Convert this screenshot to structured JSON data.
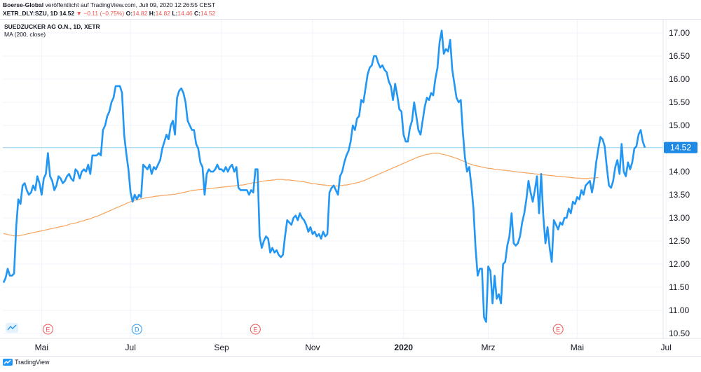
{
  "header": {
    "publisher": "Boerse-Global",
    "published_text": "veröffentlicht auf TradingView.com, Juli 09, 2020 12:26:55 CEST",
    "symbol": "XETR_DLY:SZU, 1D",
    "last": "14.52",
    "change": "−0.11 (−0.75%)",
    "o_label": "O:",
    "o_value": "14.82",
    "h_label": "H:",
    "h_value": "14.82",
    "l_label": "L:",
    "l_value": "14.46",
    "c_label": "C:",
    "c_value": "14.52"
  },
  "legend": {
    "title": "SUEDZUCKER AG O.N., 1D, XETR",
    "indicator": "MA (200, close)"
  },
  "footer": {
    "brand": "TradingView"
  },
  "colors": {
    "price": "#2196f3",
    "ma": "#f7a35c",
    "last_line": "#9fd4f5",
    "last_badge": "#1e88e5",
    "grid": "#f0f3fa",
    "axis": "#e0e3eb"
  },
  "chart_data": {
    "type": "line",
    "ylim": [
      10.4,
      17.2
    ],
    "y_ticks": [
      "10.50",
      "11.00",
      "11.50",
      "12.00",
      "12.50",
      "13.00",
      "13.50",
      "14.00",
      "14.50",
      "15.00",
      "15.50",
      "16.00",
      "16.50",
      "17.00"
    ],
    "x_ticks": [
      {
        "label": "Mai",
        "bold": false
      },
      {
        "label": "Jul",
        "bold": false
      },
      {
        "label": "Sep",
        "bold": false
      },
      {
        "label": "Nov",
        "bold": false
      },
      {
        "label": "2020",
        "bold": true
      },
      {
        "label": "Mrz",
        "bold": false
      },
      {
        "label": "Mai",
        "bold": false
      },
      {
        "label": "Jul",
        "bold": false
      }
    ],
    "x_tick_index": [
      18,
      60,
      103,
      146,
      189,
      229,
      271,
      313
    ],
    "last_price_label": "14.52",
    "events": [
      {
        "label": "E",
        "index": 21,
        "color": "#ef5350"
      },
      {
        "label": "D",
        "index": 63,
        "color": "#2196f3"
      },
      {
        "label": "E",
        "index": 119,
        "color": "#ef5350"
      },
      {
        "label": "E",
        "index": 262,
        "color": "#ef5350"
      }
    ],
    "series": [
      {
        "name": "SUEDZUCKER AG O.N., 1D, XETR",
        "values": [
          11.6,
          11.7,
          11.9,
          11.75,
          11.75,
          11.8,
          12.8,
          13.4,
          13.3,
          13.7,
          13.75,
          13.6,
          13.5,
          13.55,
          13.7,
          13.6,
          13.9,
          13.75,
          13.5,
          13.85,
          13.95,
          14.4,
          13.9,
          13.8,
          13.6,
          13.7,
          13.9,
          13.85,
          13.75,
          13.8,
          13.9,
          13.95,
          13.85,
          13.8,
          14.05,
          14.0,
          13.85,
          14.0,
          14.05,
          14.0,
          14.15,
          13.95,
          14.35,
          14.35,
          14.35,
          14.4,
          14.35,
          14.9,
          15.0,
          15.2,
          15.3,
          15.5,
          15.6,
          15.85,
          15.85,
          15.85,
          15.7,
          14.8,
          14.4,
          14.05,
          13.55,
          13.35,
          13.5,
          13.4,
          13.5,
          13.45,
          14.15,
          14.1,
          14.05,
          14.15,
          13.95,
          14.1,
          14.05,
          14.15,
          14.25,
          14.5,
          14.65,
          14.8,
          14.7,
          15.0,
          15.1,
          14.8,
          15.6,
          15.75,
          15.8,
          15.7,
          15.5,
          15.1,
          15.0,
          14.9,
          14.9,
          14.6,
          14.5,
          14.2,
          14.1,
          13.5,
          13.95,
          14.05,
          14.0,
          14.0,
          14.05,
          14.15,
          14.05,
          14.05,
          14.0,
          14.1,
          14.0,
          14.1,
          14.15,
          14.0,
          14.1,
          13.65,
          13.6,
          13.6,
          13.6,
          13.6,
          13.5,
          13.6,
          13.55,
          14.05,
          14.05,
          12.6,
          12.35,
          12.5,
          12.6,
          12.55,
          12.25,
          12.35,
          12.25,
          12.3,
          12.2,
          12.15,
          12.2,
          12.6,
          12.95,
          12.9,
          12.85,
          13.0,
          13.05,
          12.95,
          13.1,
          13.0,
          12.95,
          12.85,
          12.7,
          12.8,
          12.65,
          12.7,
          12.6,
          12.65,
          12.55,
          12.7,
          12.6,
          12.65,
          13.55,
          13.65,
          13.7,
          13.6,
          13.5,
          13.9,
          14.0,
          14.2,
          14.35,
          14.45,
          14.65,
          15.0,
          14.9,
          15.15,
          15.2,
          15.55,
          15.5,
          15.8,
          16.1,
          16.25,
          16.3,
          16.5,
          16.5,
          16.35,
          16.25,
          16.3,
          16.2,
          16.15,
          15.95,
          15.85,
          15.55,
          15.9,
          15.65,
          15.35,
          15.3,
          14.8,
          14.65,
          14.65,
          14.95,
          15.1,
          15.5,
          15.2,
          14.9,
          14.8,
          15.1,
          15.4,
          15.6,
          15.55,
          15.7,
          15.65,
          16.0,
          16.25,
          16.8,
          17.05,
          16.55,
          16.65,
          16.6,
          16.85,
          16.2,
          15.9,
          15.6,
          15.5,
          15.55,
          14.85,
          14.3,
          14.0,
          14.1,
          13.7,
          13.2,
          12.35,
          11.75,
          11.9,
          11.9,
          10.85,
          10.75,
          11.95,
          11.85,
          11.15,
          11.75,
          11.25,
          11.35,
          11.15,
          12.0,
          12.05,
          12.4,
          12.6,
          13.1,
          12.45,
          12.4,
          12.45,
          12.6,
          12.9,
          13.1,
          13.4,
          13.8,
          13.55,
          13.35,
          13.6,
          13.9,
          13.1,
          13.95,
          13.05,
          12.45,
          12.8,
          12.35,
          12.05,
          12.95,
          12.85,
          12.75,
          12.9,
          12.85,
          13.0,
          13.0,
          13.2,
          13.1,
          13.35,
          13.3,
          13.45,
          13.4,
          13.6,
          13.5,
          13.7,
          13.75,
          13.8,
          13.55,
          13.8,
          14.2,
          14.5,
          14.75,
          14.7,
          14.55,
          14.1,
          13.7,
          13.65,
          13.8,
          14.1,
          14.25,
          13.95,
          14.6,
          14.0,
          13.9,
          14.2,
          14.05,
          14.2,
          14.5,
          14.55,
          14.8,
          14.9,
          14.65,
          14.52
        ]
      },
      {
        "name": "MA (200, close)",
        "values": [
          12.66,
          12.65,
          12.64,
          12.63,
          12.62,
          12.61,
          12.61,
          12.61,
          12.62,
          12.63,
          12.64,
          12.65,
          12.66,
          12.67,
          12.68,
          12.69,
          12.7,
          12.71,
          12.72,
          12.73,
          12.74,
          12.75,
          12.76,
          12.77,
          12.78,
          12.79,
          12.8,
          12.81,
          12.82,
          12.83,
          12.84,
          12.86,
          12.87,
          12.88,
          12.89,
          12.9,
          12.92,
          12.93,
          12.94,
          12.96,
          12.97,
          12.98,
          13.0,
          13.02,
          13.03,
          13.05,
          13.07,
          13.09,
          13.11,
          13.13,
          13.15,
          13.17,
          13.19,
          13.21,
          13.23,
          13.25,
          13.27,
          13.29,
          13.31,
          13.33,
          13.35,
          13.37,
          13.38,
          13.39,
          13.4,
          13.41,
          13.42,
          13.43,
          13.44,
          13.45,
          13.45,
          13.46,
          13.47,
          13.47,
          13.48,
          13.48,
          13.49,
          13.49,
          13.5,
          13.5,
          13.51,
          13.51,
          13.52,
          13.53,
          13.54,
          13.55,
          13.56,
          13.57,
          13.58,
          13.59,
          13.6,
          13.6,
          13.61,
          13.61,
          13.62,
          13.62,
          13.63,
          13.63,
          13.64,
          13.64,
          13.65,
          13.65,
          13.66,
          13.66,
          13.67,
          13.67,
          13.68,
          13.68,
          13.69,
          13.69,
          13.7,
          13.7,
          13.71,
          13.71,
          13.72,
          13.73,
          13.74,
          13.75,
          13.76,
          13.76,
          13.77,
          13.78,
          13.79,
          13.8,
          13.8,
          13.81,
          13.81,
          13.82,
          13.82,
          13.83,
          13.83,
          13.83,
          13.83,
          13.82,
          13.82,
          13.82,
          13.81,
          13.81,
          13.8,
          13.8,
          13.79,
          13.79,
          13.78,
          13.77,
          13.76,
          13.75,
          13.74,
          13.74,
          13.73,
          13.72,
          13.72,
          13.71,
          13.71,
          13.7,
          13.7,
          13.7,
          13.69,
          13.69,
          13.69,
          13.7,
          13.7,
          13.71,
          13.71,
          13.72,
          13.73,
          13.74,
          13.75,
          13.76,
          13.77,
          13.79,
          13.8,
          13.82,
          13.84,
          13.86,
          13.88,
          13.9,
          13.92,
          13.94,
          13.96,
          13.98,
          14.0,
          14.02,
          14.04,
          14.06,
          14.08,
          14.1,
          14.12,
          14.14,
          14.16,
          14.18,
          14.2,
          14.22,
          14.24,
          14.26,
          14.28,
          14.3,
          14.32,
          14.33,
          14.35,
          14.36,
          14.37,
          14.38,
          14.39,
          14.4,
          14.4,
          14.4,
          14.39,
          14.38,
          14.37,
          14.36,
          14.35,
          14.33,
          14.32,
          14.3,
          14.29,
          14.27,
          14.25,
          14.23,
          14.21,
          14.19,
          14.17,
          14.16,
          14.14,
          14.13,
          14.12,
          14.11,
          14.1,
          14.09,
          14.08,
          14.07,
          14.07,
          14.06,
          14.05,
          14.05,
          14.04,
          14.04,
          14.03,
          14.03,
          14.02,
          14.02,
          14.01,
          14.0,
          14.0,
          13.99,
          13.99,
          13.98,
          13.98,
          13.97,
          13.97,
          13.96,
          13.96,
          13.95,
          13.95,
          13.94,
          13.94,
          13.93,
          13.93,
          13.92,
          13.92,
          13.91,
          13.91,
          13.9,
          13.9,
          13.9,
          13.89,
          13.89,
          13.88,
          13.88,
          13.87,
          13.87,
          13.86,
          13.86,
          13.86,
          13.85,
          13.85,
          13.85,
          13.85,
          13.86,
          13.86,
          13.86,
          13.87,
          13.87
        ]
      }
    ]
  }
}
